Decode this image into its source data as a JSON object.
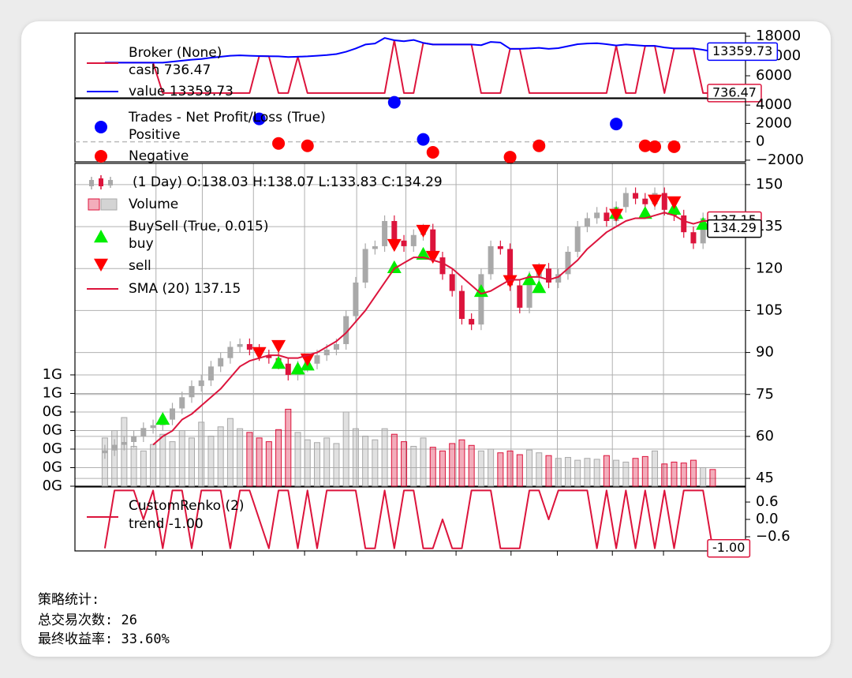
{
  "chart_data": [
    {
      "type": "broker",
      "legend_title": "Broker (None)",
      "x": [
        0,
        1,
        2,
        3,
        4,
        5,
        6,
        7,
        8,
        9,
        10,
        11,
        12,
        13,
        14,
        15,
        16,
        17,
        18,
        19,
        20,
        21,
        22,
        23,
        24,
        25,
        26,
        27,
        28,
        29,
        30,
        31,
        32,
        33,
        34,
        35,
        36,
        37,
        38,
        39,
        40,
        41,
        42,
        43,
        44,
        45,
        46,
        47,
        48,
        49,
        50,
        51,
        52,
        53,
        54,
        55,
        56,
        57,
        58,
        59,
        60,
        61,
        62,
        63
      ],
      "xlim": [
        -3.1,
        66.4
      ],
      "ylim": [
        -720,
        18960
      ],
      "yticks": [
        6000,
        12000,
        18000
      ],
      "series": [
        {
          "name": "cash 736.47",
          "color": "#dc143c",
          "last_label": "736.47",
          "values": [
            10000,
            10000,
            10000,
            10000,
            10000,
            10000,
            742,
            742,
            742,
            742,
            742,
            742,
            742,
            742,
            742,
            742,
            12000,
            11950,
            745,
            745,
            11800,
            745,
            745,
            745,
            745,
            745,
            745,
            745,
            745,
            745,
            16800,
            738,
            738,
            16000,
            15500,
            15500,
            15500,
            15500,
            15500,
            740,
            740,
            740,
            14200,
            14200,
            740,
            740,
            740,
            740,
            740,
            740,
            740,
            740,
            740,
            15200,
            737,
            737,
            15100,
            15100,
            737,
            14300,
            14300,
            14300,
            736.47,
            736.47
          ]
        },
        {
          "name": "value 13359.73",
          "color": "#0000ff",
          "last_label": "13359.73",
          "values": [
            10000,
            10000,
            10000,
            10000,
            10000,
            10000,
            10000,
            10300,
            10600,
            10900,
            11100,
            11500,
            11800,
            12100,
            12200,
            12100,
            12000,
            11950,
            11900,
            11700,
            11800,
            11900,
            12100,
            12300,
            12600,
            13300,
            14300,
            15500,
            15800,
            17500,
            16800,
            16500,
            16900,
            16000,
            15500,
            15500,
            15500,
            15500,
            15500,
            15300,
            16300,
            16100,
            14200,
            14200,
            14300,
            14500,
            14200,
            14400,
            15000,
            15600,
            15800,
            15900,
            15600,
            15200,
            15500,
            15300,
            15100,
            15100,
            14600,
            14300,
            14300,
            14300,
            13900,
            13359.73
          ]
        }
      ]
    },
    {
      "type": "scatter",
      "legend_title": "Trades - Net Profit/Loss (True)",
      "xlim": [
        -3.1,
        66.4
      ],
      "ylim": [
        -2180,
        4700
      ],
      "yticks": [
        {
          "value": -2000,
          "label": "−2000"
        },
        0,
        2000,
        4000
      ],
      "series": [
        {
          "name": "Positive",
          "color": "#0000ff",
          "x": [
            16,
            30,
            33,
            53
          ],
          "values": [
            2500,
            4300,
            260,
            1940
          ]
        },
        {
          "name": "Negative",
          "color": "#ff0000",
          "x": [
            18,
            21,
            34,
            42,
            45,
            56,
            57,
            59
          ],
          "values": [
            -180,
            -440,
            -1150,
            -1670,
            -440,
            -440,
            -530,
            -530
          ]
        }
      ]
    },
    {
      "type": "candlestick",
      "ohlc_label": "(1 Day) O:138.03 H:138.07 L:133.83 C:134.29",
      "last_label": "134.29",
      "up_color": "#a9a9a9",
      "down_color": "#dc143c",
      "grid": true,
      "x": [
        0,
        1,
        2,
        3,
        4,
        5,
        6,
        7,
        8,
        9,
        10,
        11,
        12,
        13,
        14,
        15,
        16,
        17,
        18,
        19,
        20,
        21,
        22,
        23,
        24,
        25,
        26,
        27,
        28,
        29,
        30,
        31,
        32,
        33,
        34,
        35,
        36,
        37,
        38,
        39,
        40,
        41,
        42,
        43,
        44,
        45,
        46,
        47,
        48,
        49,
        50,
        51,
        52,
        53,
        54,
        55,
        56,
        57,
        58,
        59,
        60,
        61,
        62,
        63
      ],
      "open": [
        54,
        55,
        57,
        58,
        60,
        63,
        64,
        66,
        70,
        74,
        78,
        80,
        85,
        88,
        92,
        93,
        91,
        89,
        88,
        86,
        82,
        85,
        86,
        89,
        91,
        93,
        103,
        115,
        127,
        128,
        137,
        130,
        128,
        132,
        134,
        124,
        118,
        112,
        102,
        100,
        118,
        128,
        127,
        114,
        106,
        117,
        120,
        115,
        118,
        126,
        135,
        138,
        140,
        137,
        142,
        147,
        145,
        143,
        147,
        141,
        139,
        133,
        129,
        138.03
      ],
      "high": [
        57,
        59,
        60,
        62,
        65,
        66,
        68,
        72,
        76,
        80,
        82,
        87,
        90,
        94,
        95,
        95,
        93,
        91,
        90,
        88,
        87,
        88,
        91,
        93,
        95,
        105,
        117,
        129,
        130,
        139,
        139,
        132,
        134,
        136,
        136,
        126,
        120,
        114,
        104,
        120,
        130,
        130,
        129,
        116,
        119,
        122,
        122,
        120,
        128,
        137,
        140,
        142,
        142,
        144,
        149,
        149,
        147,
        149,
        149,
        143,
        141,
        135,
        140,
        138.07
      ],
      "low": [
        52,
        53,
        55,
        56,
        58,
        61,
        62,
        64,
        68,
        72,
        76,
        78,
        83,
        86,
        90,
        89,
        87,
        86,
        84,
        80,
        80,
        83,
        84,
        87,
        89,
        91,
        101,
        113,
        125,
        126,
        128,
        126,
        126,
        130,
        122,
        116,
        110,
        100,
        98,
        98,
        116,
        125,
        112,
        104,
        104,
        115,
        113,
        113,
        116,
        124,
        133,
        136,
        135,
        135,
        140,
        143,
        141,
        141,
        139,
        137,
        131,
        127,
        127,
        133.83
      ],
      "close": [
        55,
        57,
        58,
        60,
        63,
        64,
        66,
        70,
        74,
        78,
        80,
        85,
        88,
        92,
        93,
        91,
        89,
        88,
        86,
        82,
        85,
        86,
        89,
        91,
        93,
        103,
        115,
        127,
        128,
        137,
        130,
        128,
        132,
        134,
        124,
        118,
        112,
        102,
        100,
        118,
        128,
        127,
        114,
        106,
        117,
        120,
        115,
        118,
        126,
        135,
        138,
        140,
        137,
        142,
        147,
        145,
        143,
        147,
        141,
        139,
        133,
        129,
        138,
        134.29
      ],
      "volume": {
        "name": "Volume",
        "values": [
          520000000,
          600000000,
          740000000,
          430000000,
          380000000,
          450000000,
          560000000,
          480000000,
          600000000,
          520000000,
          690000000,
          540000000,
          640000000,
          730000000,
          620000000,
          580000000,
          520000000,
          480000000,
          610000000,
          830000000,
          580000000,
          500000000,
          470000000,
          520000000,
          460000000,
          800000000,
          620000000,
          540000000,
          500000000,
          620000000,
          560000000,
          480000000,
          430000000,
          520000000,
          420000000,
          380000000,
          460000000,
          500000000,
          440000000,
          380000000,
          400000000,
          360000000,
          380000000,
          340000000,
          390000000,
          360000000,
          330000000,
          300000000,
          310000000,
          280000000,
          300000000,
          290000000,
          330000000,
          280000000,
          260000000,
          300000000,
          320000000,
          380000000,
          240000000,
          260000000,
          250000000,
          280000000,
          200000000,
          180000000
        ]
      },
      "buysell_title": "BuySell (True, 0.015)",
      "series": [
        {
          "name": "buy",
          "color": "#00ee00",
          "marker": "^",
          "x": [
            6,
            18,
            20,
            21,
            30,
            33,
            39,
            44,
            45,
            53,
            56,
            59,
            62
          ],
          "values": [
            66.2,
            86.2,
            84.2,
            85.6,
            120.4,
            125.2,
            111.9,
            116.1,
            113.3,
            139.8,
            139.8,
            141.3,
            135.9
          ]
        },
        {
          "name": "sell",
          "color": "#ff0000",
          "marker": "v",
          "x": [
            16,
            18,
            21,
            30,
            33,
            34,
            42,
            45,
            53,
            57,
            59
          ],
          "values": [
            89.9,
            92.4,
            87.6,
            128.5,
            133.6,
            124.3,
            115.6,
            119.5,
            139.3,
            144.4,
            143.8
          ]
        },
        {
          "name": "SMA (20) 137.15",
          "color": "#dc143c",
          "last_label": "137.15",
          "values": [
            null,
            null,
            null,
            null,
            null,
            57,
            60,
            62,
            66,
            68,
            71,
            74,
            77,
            81,
            85,
            87,
            88,
            89,
            89,
            88,
            88,
            89,
            90,
            92,
            94,
            97,
            101,
            105,
            110,
            115,
            120,
            122,
            124,
            124,
            123,
            122,
            120,
            117,
            114,
            111,
            112,
            114,
            116,
            116,
            117,
            117,
            116,
            117,
            120,
            123,
            127,
            130,
            133,
            135,
            137,
            138,
            138,
            139,
            140,
            139,
            137,
            136,
            137,
            137.15
          ]
        }
      ],
      "xlim": [
        -3.1,
        66.4
      ],
      "xticks": [
        5.3,
        10.1,
        15.4,
        20.7,
        26.1,
        31.2,
        36.4,
        42.1,
        46.9,
        52.6,
        57.9
      ],
      "ylim": [
        42.2,
        157.6
      ],
      "yticks": [
        45,
        60,
        75,
        90,
        105,
        120,
        135,
        150
      ],
      "y2lim": [
        0,
        3480000000
      ],
      "y2ticks": [
        {
          "value": 0,
          "label": "0G"
        },
        {
          "value": 200000000,
          "label": "0G"
        },
        {
          "value": 400000000,
          "label": "0G"
        },
        {
          "value": 600000000,
          "label": "0G"
        },
        {
          "value": 800000000,
          "label": "0G"
        },
        {
          "value": 1000000000,
          "label": "1G"
        },
        {
          "value": 1200000000,
          "label": "1G"
        }
      ]
    },
    {
      "type": "line",
      "legend_title": "CustomRenko (2)",
      "x": [
        0,
        1,
        2,
        3,
        4,
        5,
        6,
        7,
        8,
        9,
        10,
        11,
        12,
        13,
        14,
        15,
        16,
        17,
        18,
        19,
        20,
        21,
        22,
        23,
        24,
        25,
        26,
        27,
        28,
        29,
        30,
        31,
        32,
        33,
        34,
        35,
        36,
        37,
        38,
        39,
        40,
        41,
        42,
        43,
        44,
        45,
        46,
        47,
        48,
        49,
        50,
        51,
        52,
        53,
        54,
        55,
        56,
        57,
        58,
        59,
        60,
        61,
        62,
        63
      ],
      "xlim": [
        -3.1,
        66.4
      ],
      "xticks": [
        5.3,
        10.1,
        15.4,
        20.7,
        26.1,
        31.2,
        36.4,
        42.1,
        46.9,
        52.6,
        57.9
      ],
      "ylim": [
        -1.09,
        1.12
      ],
      "yticks": [
        {
          "value": -0.6,
          "label": "−0.6"
        },
        {
          "value": 0,
          "label": "0.0"
        },
        0.6
      ],
      "series": [
        {
          "name": "trend -1.00",
          "color": "#dc143c",
          "last_label": "-1.00",
          "values": [
            -1,
            1,
            1,
            1,
            0,
            1,
            -1,
            1,
            1,
            -1,
            1,
            1,
            1,
            -1,
            1,
            1,
            0,
            -1,
            1,
            1,
            -1,
            1,
            -1,
            1,
            1,
            1,
            1,
            -1,
            -1,
            1,
            -1,
            1,
            1,
            -1,
            -1,
            0,
            -1,
            -1,
            1,
            1,
            1,
            -1,
            -1,
            -1,
            1,
            1,
            0,
            1,
            1,
            1,
            1,
            -1,
            1,
            -1,
            1,
            -1,
            1,
            -1,
            1,
            -1,
            1,
            1,
            1,
            -1
          ]
        }
      ]
    }
  ],
  "stats": {
    "title": "策略统计:",
    "trades": "总交易次数: 26",
    "return": "最终收益率: 33.60%"
  }
}
